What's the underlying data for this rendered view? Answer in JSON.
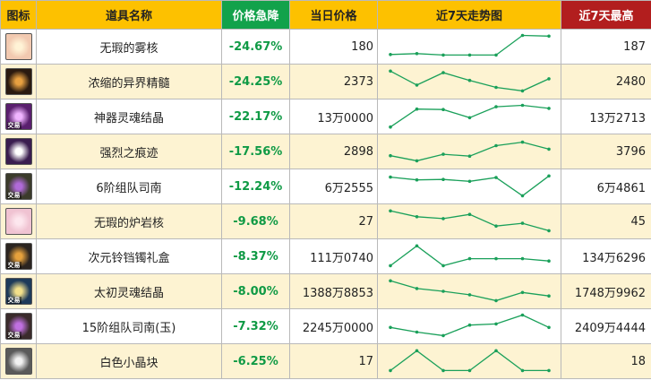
{
  "headers": {
    "icon": "图标",
    "name": "道具名称",
    "drop": "价格急降",
    "price": "当日价格",
    "trend": "近7天走势图",
    "high": "近7天最高"
  },
  "colors": {
    "header_bg": "#fdc100",
    "drop_header_bg": "#12a24b",
    "high_header_bg": "#b21e1e",
    "drop_text": "#0f9a45",
    "trend_line": "#1aa05a",
    "row_alt": "#fdf3d2"
  },
  "rows": [
    {
      "name": "无瑕的雾核",
      "drop": "-24.67%",
      "price": "180",
      "high": "187",
      "icon": {
        "name": "pink-orb-icon",
        "bg": "#f2c9b0",
        "fg": "#fff3d6",
        "tag": ""
      },
      "trend": [
        0.16,
        0.2,
        0.14,
        0.14,
        0.14,
        0.98,
        0.95
      ]
    },
    {
      "name": "浓缩的异界精髓",
      "drop": "-24.25%",
      "price": "2373",
      "high": "2480",
      "icon": {
        "name": "dark-essence-icon",
        "bg": "#2a1a10",
        "fg": "#e8a040",
        "tag": ""
      },
      "trend": [
        0.95,
        0.35,
        0.88,
        0.55,
        0.25,
        0.1,
        0.62
      ]
    },
    {
      "name": "神器灵魂结晶",
      "drop": "-22.17%",
      "price": "13万0000",
      "high": "13万2713",
      "icon": {
        "name": "purple-crystal-icon",
        "bg": "#5a1f6e",
        "fg": "#f0b4ff",
        "tag": "交易"
      },
      "trend": [
        0.05,
        0.82,
        0.8,
        0.45,
        0.92,
        0.98,
        0.85
      ]
    },
    {
      "name": "强烈之痕迹",
      "drop": "-17.56%",
      "price": "2898",
      "high": "3796",
      "icon": {
        "name": "white-spark-icon",
        "bg": "#3a1d4f",
        "fg": "#ffffff",
        "tag": ""
      },
      "trend": [
        0.32,
        0.1,
        0.38,
        0.3,
        0.75,
        0.9,
        0.6
      ]
    },
    {
      "name": "6阶组队司南",
      "drop": "-12.24%",
      "price": "6万2555",
      "high": "6万4861",
      "icon": {
        "name": "compass-icon",
        "bg": "#3b3b2b",
        "fg": "#b06ad8",
        "tag": "交易"
      },
      "trend": [
        0.9,
        0.78,
        0.8,
        0.72,
        0.88,
        0.1,
        0.95
      ]
    },
    {
      "name": "无瑕的炉岩核",
      "drop": "-9.68%",
      "price": "27",
      "high": "45",
      "icon": {
        "name": "rose-orb-icon",
        "bg": "#f0c3d2",
        "fg": "#fde7ee",
        "tag": ""
      },
      "trend": [
        0.95,
        0.7,
        0.62,
        0.8,
        0.3,
        0.42,
        0.1
      ]
    },
    {
      "name": "次元铃铛镯礼盒",
      "drop": "-8.37%",
      "price": "111万0740",
      "high": "134万6296",
      "icon": {
        "name": "bell-box-icon",
        "bg": "#2b2420",
        "fg": "#e6a13c",
        "tag": "交易"
      },
      "trend": [
        0.1,
        0.95,
        0.1,
        0.4,
        0.4,
        0.4,
        0.3
      ]
    },
    {
      "name": "太初灵魂结晶",
      "drop": "-8.00%",
      "price": "1388万8853",
      "high": "1748万9962",
      "icon": {
        "name": "gold-crystal-icon",
        "bg": "#1e3a5a",
        "fg": "#f3e08a",
        "tag": "交易"
      },
      "trend": [
        0.95,
        0.62,
        0.5,
        0.35,
        0.1,
        0.45,
        0.3
      ]
    },
    {
      "name": "15阶组队司南(玉)",
      "drop": "-7.32%",
      "price": "2245万0000",
      "high": "2409万4444",
      "icon": {
        "name": "jade-compass-icon",
        "bg": "#3a2b2b",
        "fg": "#c070e0",
        "tag": "交易"
      },
      "trend": [
        0.45,
        0.25,
        0.1,
        0.55,
        0.6,
        0.98,
        0.45
      ]
    },
    {
      "name": "白色小晶块",
      "drop": "-6.25%",
      "price": "17",
      "high": "18",
      "icon": {
        "name": "white-cube-icon",
        "bg": "#5a5a5a",
        "fg": "#f2f2f2",
        "tag": ""
      },
      "trend": [
        0.1,
        0.95,
        0.1,
        0.1,
        0.95,
        0.1,
        0.1
      ]
    }
  ]
}
